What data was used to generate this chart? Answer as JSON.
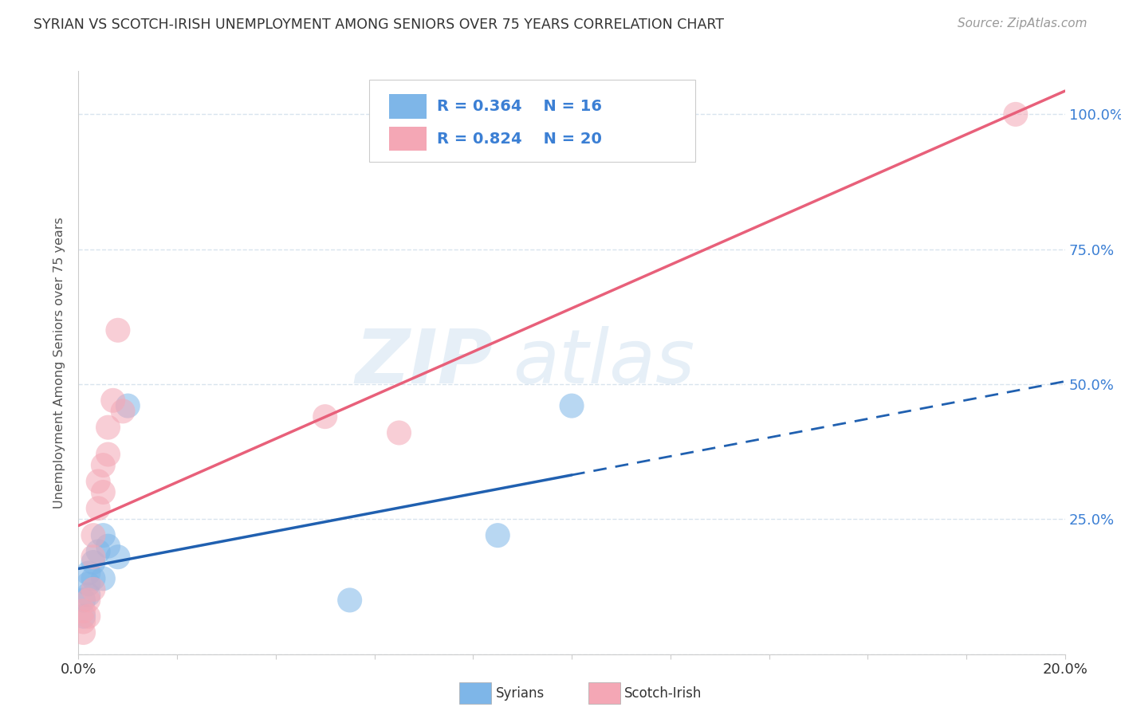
{
  "title": "SYRIAN VS SCOTCH-IRISH UNEMPLOYMENT AMONG SENIORS OVER 75 YEARS CORRELATION CHART",
  "source": "Source: ZipAtlas.com",
  "ylabel": "Unemployment Among Seniors over 75 years",
  "xlim": [
    0.0,
    0.2
  ],
  "ylim": [
    0.0,
    1.08
  ],
  "yticks": [
    0.0,
    0.25,
    0.5,
    0.75,
    1.0
  ],
  "xticks": [
    0.0,
    0.02,
    0.04,
    0.06,
    0.08,
    0.1,
    0.12,
    0.14,
    0.16,
    0.18,
    0.2
  ],
  "syrians_x": [
    0.001,
    0.001,
    0.002,
    0.002,
    0.002,
    0.003,
    0.003,
    0.004,
    0.005,
    0.005,
    0.006,
    0.008,
    0.01,
    0.055,
    0.085,
    0.1
  ],
  "syrians_y": [
    0.1,
    0.07,
    0.11,
    0.13,
    0.15,
    0.14,
    0.17,
    0.19,
    0.22,
    0.14,
    0.2,
    0.18,
    0.46,
    0.1,
    0.22,
    0.46
  ],
  "scotchirish_x": [
    0.001,
    0.001,
    0.001,
    0.002,
    0.002,
    0.003,
    0.003,
    0.003,
    0.004,
    0.004,
    0.005,
    0.005,
    0.006,
    0.006,
    0.007,
    0.008,
    0.009,
    0.05,
    0.065,
    0.19
  ],
  "scotchirish_y": [
    0.04,
    0.08,
    0.06,
    0.1,
    0.07,
    0.12,
    0.18,
    0.22,
    0.27,
    0.32,
    0.35,
    0.3,
    0.42,
    0.37,
    0.47,
    0.6,
    0.45,
    0.44,
    0.41,
    1.0
  ],
  "syrian_R": 0.364,
  "syrian_N": 16,
  "scotchirish_R": 0.824,
  "scotchirish_N": 20,
  "syrian_color": "#7EB6E8",
  "scotchirish_color": "#F4A7B5",
  "syrian_line_color": "#2060B0",
  "scotchirish_line_color": "#E8607A",
  "legend_text_color": "#3B7FD4",
  "watermark_zip": "ZIP",
  "watermark_atlas": "atlas",
  "background_color": "#FFFFFF",
  "plot_bg_color": "#FFFFFF",
  "grid_color": "#D8E4EE",
  "title_color": "#333333",
  "axis_color": "#CCCCCC",
  "syrian_line_intercept": 0.1,
  "syrian_line_slope": 1.8,
  "scotchirish_line_intercept": -0.05,
  "scotchirish_line_slope": 5.5
}
